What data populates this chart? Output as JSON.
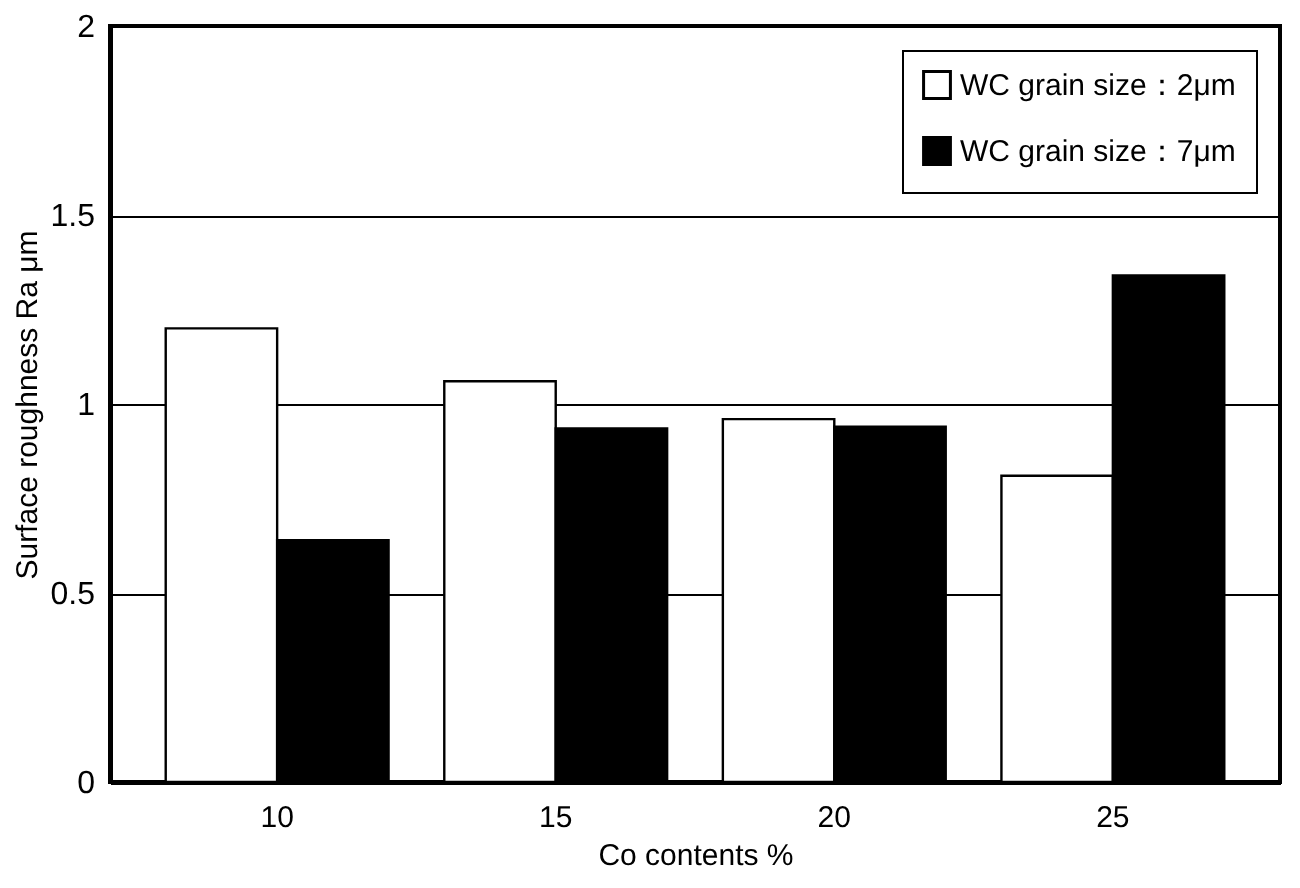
{
  "chart_data": {
    "type": "bar",
    "xlabel": "Co contents  %",
    "ylabel": "Surface roughness Ra μm",
    "categories": [
      "10",
      "15",
      "20",
      "25"
    ],
    "series": [
      {
        "name": "WC grain size：2μm",
        "color": "#ffffff",
        "values": [
          1.2,
          1.06,
          0.96,
          0.81
        ]
      },
      {
        "name": "WC grain size：7μm",
        "color": "#000000",
        "values": [
          0.64,
          0.935,
          0.94,
          1.34
        ]
      }
    ],
    "ylim": [
      0,
      2
    ],
    "yticks": [
      0,
      0.5,
      1,
      1.5,
      2
    ],
    "grid": "y",
    "legend": "top right"
  }
}
